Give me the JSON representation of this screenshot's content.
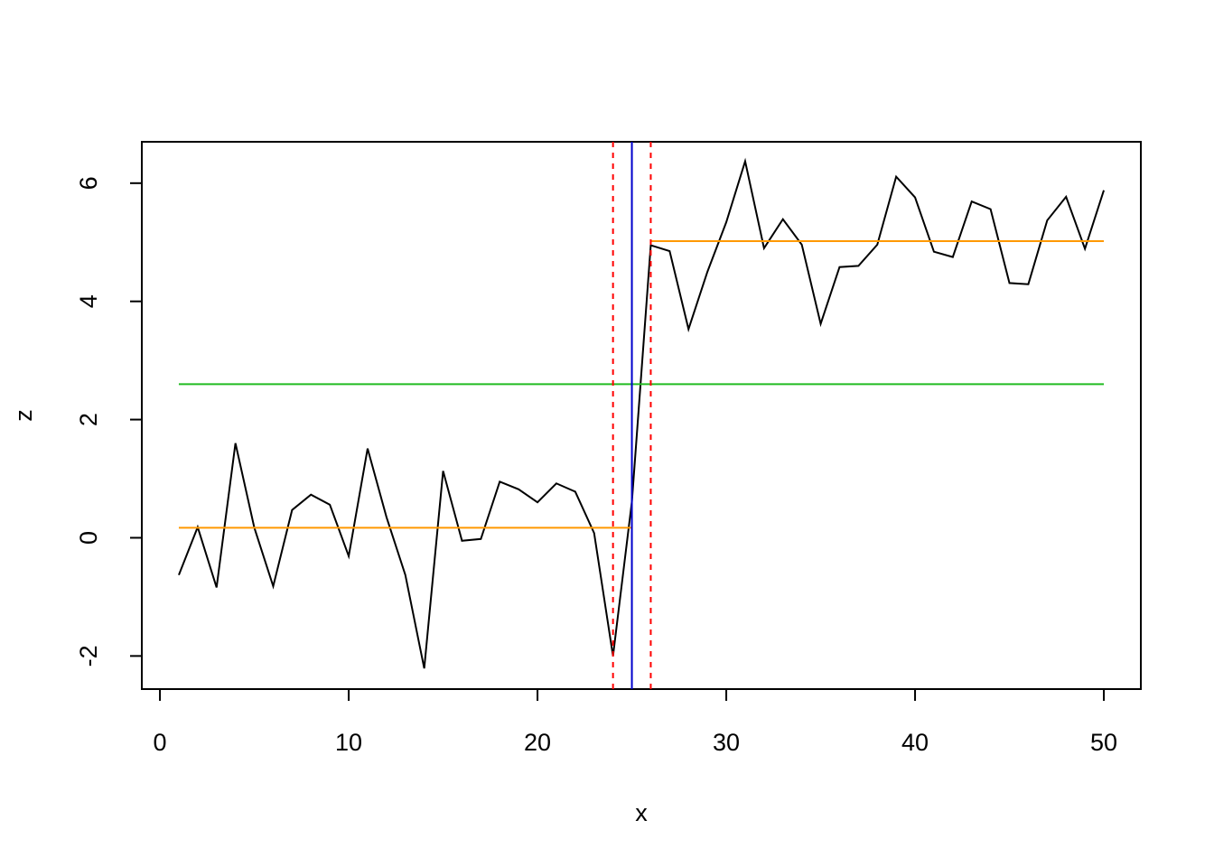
{
  "chart_data": {
    "type": "line",
    "x_label": "x",
    "y_label": "z",
    "x": [
      1,
      2,
      3,
      4,
      5,
      6,
      7,
      8,
      9,
      10,
      11,
      12,
      13,
      14,
      15,
      16,
      17,
      18,
      19,
      20,
      21,
      22,
      23,
      24,
      25,
      26,
      27,
      28,
      29,
      30,
      31,
      32,
      33,
      34,
      35,
      36,
      37,
      38,
      39,
      40,
      41,
      42,
      43,
      44,
      45,
      46,
      47,
      48,
      49,
      50
    ],
    "series": [
      {
        "color": "#000000",
        "values": [
          -0.63,
          0.18,
          -0.84,
          1.6,
          0.17,
          -0.82,
          0.47,
          0.73,
          0.56,
          -0.31,
          1.51,
          0.35,
          -0.63,
          -2.21,
          1.13,
          -0.05,
          -0.02,
          0.95,
          0.82,
          0.6,
          0.92,
          0.78,
          0.08,
          -2.0,
          0.61,
          4.95,
          4.85,
          3.53,
          4.5,
          5.34,
          6.37,
          4.9,
          5.39,
          4.96,
          3.62,
          4.58,
          4.6,
          4.96,
          6.11,
          5.76,
          4.84,
          4.75,
          5.69,
          5.56,
          4.31,
          4.29,
          5.37,
          5.77,
          4.89,
          5.88
        ]
      }
    ],
    "hlines": [
      {
        "y": 0.17,
        "x": [
          1,
          25
        ],
        "color": "#ff9900"
      },
      {
        "y": 5.02,
        "x": [
          26,
          50
        ],
        "color": "#ff9900"
      },
      {
        "y": 2.6,
        "x": [
          1,
          50
        ],
        "color": "#22bb22"
      }
    ],
    "vlines": [
      {
        "x": 24,
        "color": "#ff0000",
        "dashed": true
      },
      {
        "x": 25,
        "color": "#0000cc",
        "dashed": false
      },
      {
        "x": 26,
        "color": "#ff0000",
        "dashed": true
      }
    ],
    "xlim": [
      -0.96,
      51.96
    ],
    "ylim": [
      -2.56,
      6.7
    ],
    "xticks": [
      0,
      10,
      20,
      30,
      40,
      50
    ],
    "yticks": [
      -2,
      0,
      2,
      4,
      6
    ]
  }
}
